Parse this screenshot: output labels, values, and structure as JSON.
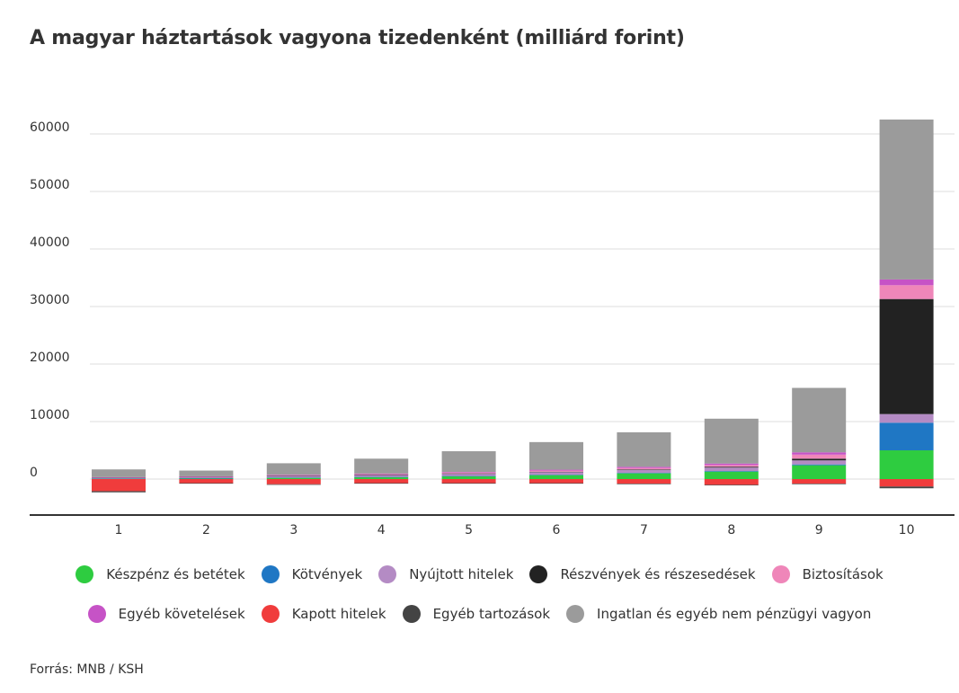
{
  "title": "A magyar háztartások vagyona tizedenként (milliárd forint)",
  "source": "Forrás: MNB / KSH",
  "chart_data": {
    "type": "bar",
    "stacked": true,
    "categories": [
      "1",
      "2",
      "3",
      "4",
      "5",
      "6",
      "7",
      "8",
      "9",
      "10"
    ],
    "ylim": [
      -6000,
      65000
    ],
    "yticks": [
      0,
      10000,
      20000,
      30000,
      40000,
      50000,
      60000
    ],
    "ytick_labels": [
      "0",
      "10000",
      "20000",
      "30000",
      "40000",
      "50000",
      "60000"
    ],
    "grid": true,
    "legend_position": "bottom",
    "series": [
      {
        "name": "Készpénz és betétek",
        "color": "#2ecc40",
        "values": [
          100,
          150,
          250,
          350,
          500,
          700,
          1000,
          1300,
          2400,
          5000
        ]
      },
      {
        "name": "Kötvények",
        "color": "#1f77c4",
        "values": [
          10,
          10,
          20,
          20,
          30,
          50,
          80,
          100,
          150,
          4800
        ]
      },
      {
        "name": "Nyújtott hitelek",
        "color": "#b48bc4",
        "values": [
          150,
          200,
          300,
          350,
          400,
          450,
          500,
          600,
          700,
          1500
        ]
      },
      {
        "name": "Részvények és részesedések",
        "color": "#222222",
        "values": [
          20,
          20,
          40,
          50,
          60,
          80,
          100,
          150,
          300,
          20000
        ]
      },
      {
        "name": "Biztosítások",
        "color": "#ef86b9",
        "values": [
          20,
          50,
          80,
          100,
          150,
          200,
          250,
          300,
          700,
          2400
        ]
      },
      {
        "name": "Egyéb követelések",
        "color": "#c653c6",
        "values": [
          30,
          50,
          60,
          80,
          100,
          150,
          200,
          250,
          400,
          1000
        ]
      },
      {
        "name": "Kapott hitelek",
        "color": "#f03c3c",
        "values": [
          -2100,
          -700,
          -900,
          -700,
          -700,
          -700,
          -800,
          -1000,
          -800,
          -1300
        ]
      },
      {
        "name": "Egyéb tartozások",
        "color": "#444444",
        "values": [
          -200,
          -100,
          -100,
          -100,
          -100,
          -100,
          -100,
          -100,
          -100,
          -300
        ]
      },
      {
        "name": "Ingatlan és egyéb nem pénzügyi vagyon",
        "color": "#9b9b9b",
        "values": [
          1350,
          1000,
          2000,
          2600,
          3600,
          4800,
          6000,
          7800,
          11200,
          27800
        ]
      }
    ]
  }
}
